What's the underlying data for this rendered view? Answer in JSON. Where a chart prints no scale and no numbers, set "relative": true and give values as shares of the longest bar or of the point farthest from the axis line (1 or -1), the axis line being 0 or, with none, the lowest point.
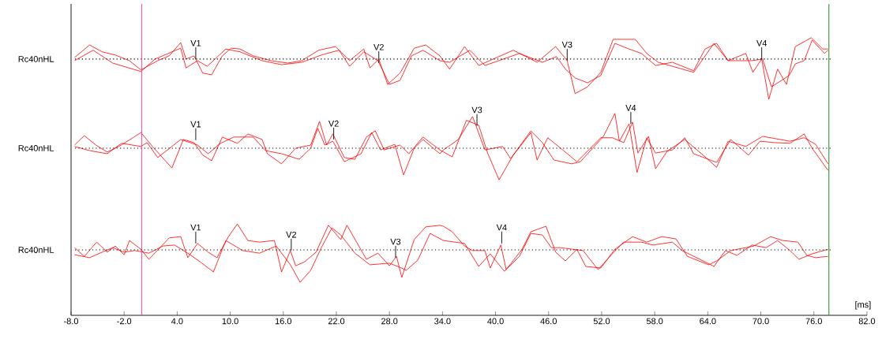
{
  "chart_data": [
    {
      "type": "line",
      "relative": true,
      "ylabel": "Rc40nHL",
      "xlim": [
        -8,
        82
      ],
      "tick_labels": false,
      "series": [
        {
          "color": "#ff0000",
          "x": [
            -7.6,
            -5.9,
            -4.5,
            -3.0,
            -1.4,
            -0.1,
            1.8,
            3.1,
            4.4,
            5.0,
            5.9,
            6.9,
            7.9,
            9.1,
            10.1,
            11.1,
            12.6,
            14.6,
            16.5,
            18.1,
            20.0,
            21.9,
            23.5,
            25.1,
            25.8,
            26.8,
            27.8,
            29.2,
            30.8,
            32.1,
            33.7,
            34.8,
            36.5,
            38.1,
            42.0,
            44.7,
            46.8,
            48.1,
            49.0,
            50.4,
            51.9,
            53.3,
            55.8,
            57.1,
            58.4,
            62.4,
            64.7,
            66.3,
            68.3,
            69.1,
            70.1,
            70.9,
            71.9,
            72.9,
            73.9,
            75.7,
            77.0,
            77.6
          ],
          "values": [
            0.04,
            0.35,
            0.18,
            0.1,
            -0.04,
            -0.27,
            -0.04,
            0.08,
            0.41,
            0,
            0.08,
            -0.35,
            -0.39,
            0.08,
            0.27,
            0.25,
            0.08,
            -0.04,
            -0.1,
            -0.04,
            0.22,
            0.31,
            -0.04,
            0.25,
            -0.22,
            0,
            -0.63,
            -0.35,
            0.27,
            0.35,
            0.08,
            -0.25,
            0.31,
            -0.16,
            0.22,
            -0.08,
            0.31,
            -0.04,
            -0.86,
            -0.69,
            -0.33,
            0.49,
            0.49,
            0.14,
            -0.08,
            -0.33,
            0.39,
            -0.04,
            0.14,
            -0.33,
            0,
            -1.0,
            -0.25,
            -0.63,
            0.31,
            0.53,
            0.25,
            0.25
          ]
        },
        {
          "color": "#ff0000",
          "x": [
            -7.6,
            -5.5,
            -3.3,
            -0.1,
            1.5,
            4.4,
            5.0,
            6.3,
            7.4,
            9.5,
            11.1,
            13.6,
            15.8,
            18.1,
            20.3,
            22.3,
            23.5,
            25.1,
            26.7,
            27.4,
            28.0,
            29.2,
            30.5,
            31.8,
            33.7,
            34.8,
            37.1,
            38.8,
            42.7,
            45.3,
            46.9,
            47.9,
            49.0,
            50.4,
            51.9,
            53.5,
            55.1,
            56.5,
            58.1,
            60.0,
            62.4,
            63.7,
            65.0,
            66.3,
            69.0,
            70.2,
            71.2,
            73.2,
            73.9,
            74.9,
            75.8,
            77.2,
            77.6
          ],
          "values": [
            -0.04,
            0.22,
            -0.1,
            -0.31,
            0,
            0.27,
            -0.22,
            -0.04,
            -0.18,
            0.25,
            0.18,
            -0.04,
            -0.14,
            -0.08,
            0.1,
            0.22,
            -0.18,
            0.18,
            -0.04,
            -0.35,
            -0.63,
            -0.53,
            0.08,
            0.22,
            -0.04,
            -0.08,
            0.22,
            -0.16,
            0.14,
            -0.08,
            0.06,
            -0.25,
            -0.47,
            -0.59,
            -0.41,
            0.39,
            0.25,
            0.14,
            -0.16,
            -0.08,
            -0.29,
            0.25,
            0.39,
            -0.04,
            -0.04,
            0,
            -0.69,
            -0.41,
            -0.12,
            -0.04,
            0.47,
            0.14,
            0.22
          ]
        }
      ],
      "ref_lines": [
        {
          "axis": "y",
          "value": 0,
          "color": "#000000",
          "line_style": "dotted"
        },
        {
          "axis": "x",
          "value": 0,
          "color": "#ff3399",
          "line_style": "solid"
        },
        {
          "axis": "x",
          "value": 77.7,
          "color": "#008000",
          "line_style": "solid"
        }
      ],
      "annotations": [
        {
          "text": "V1",
          "x": 6.1,
          "y": 0
        },
        {
          "text": "V2",
          "x": 26.8,
          "y": -0.1
        },
        {
          "text": "V3",
          "x": 48.1,
          "y": -0.04
        },
        {
          "text": "V4",
          "x": 70.1,
          "y": 0
        }
      ]
    },
    {
      "type": "line",
      "relative": true,
      "ylabel": "Rc40nHL",
      "xlim": [
        -8,
        82
      ],
      "tick_labels": false,
      "series": [
        {
          "color": "#ff0000",
          "x": [
            -7.6,
            -6.5,
            -5.2,
            -3.9,
            -2.6,
            -1.0,
            -0.1,
            1.2,
            3.4,
            4.7,
            5.9,
            6.9,
            7.9,
            9.1,
            10.8,
            12.0,
            13.6,
            14.2,
            15.8,
            17.4,
            19.1,
            20.1,
            20.9,
            21.6,
            22.9,
            24.1,
            25.4,
            26.4,
            27.4,
            29.2,
            30.2,
            31.8,
            33.7,
            35.1,
            36.7,
            38.1,
            39.1,
            40.4,
            42.0,
            44.0,
            45.3,
            46.6,
            48.6,
            49.6,
            52.2,
            53.5,
            54.0,
            55.1,
            56.0,
            57.1,
            58.1,
            60.0,
            61.4,
            62.4,
            65.0,
            66.6,
            68.6,
            69.9,
            71.6,
            73.3,
            74.9,
            75.8,
            77.6
          ],
          "values": [
            0.09,
            0.36,
            0.09,
            -0.11,
            0.05,
            0.3,
            0.45,
            0.05,
            -0.57,
            0.25,
            0.16,
            -0.2,
            -0.36,
            0.32,
            0.14,
            0.41,
            0.25,
            -0.16,
            -0.45,
            0,
            0.09,
            0.77,
            0.09,
            0.41,
            -0.27,
            -0.32,
            0.32,
            0.5,
            -0.05,
            0.09,
            -0.16,
            0.32,
            -0.05,
            -0.25,
            0.8,
            0.66,
            -0.14,
            -0.91,
            -0.2,
            0.5,
            0.16,
            -0.34,
            -0.45,
            -0.39,
            0.34,
            1.0,
            0.2,
            0.7,
            -0.7,
            0.3,
            -0.14,
            -0.05,
            0.3,
            -0.16,
            -0.41,
            0.25,
            -0.2,
            0.2,
            0.16,
            0.14,
            0.41,
            0,
            -0.64
          ]
        },
        {
          "color": "#ff0000",
          "x": [
            -7.6,
            -5.9,
            -3.9,
            -2.3,
            -0.1,
            0.6,
            1.8,
            4.4,
            6.3,
            7.5,
            8.9,
            10.4,
            12.6,
            14.0,
            15.8,
            17.8,
            19.1,
            19.9,
            20.7,
            21.6,
            22.9,
            24.8,
            26.0,
            27.0,
            28.6,
            29.6,
            30.8,
            31.8,
            33.7,
            34.1,
            35.8,
            37.4,
            38.8,
            40.8,
            41.7,
            44.0,
            44.7,
            45.9,
            47.6,
            49.2,
            51.9,
            53.2,
            54.5,
            55.5,
            56.1,
            57.3,
            58.1,
            59.4,
            61.4,
            63.7,
            65.0,
            66.3,
            68.3,
            70.2,
            73.3,
            74.9,
            76.2,
            77.6
          ],
          "values": [
            0.05,
            -0.07,
            -0.16,
            0.14,
            0.05,
            0.16,
            -0.27,
            0.25,
            0.09,
            -0.16,
            0.14,
            0.32,
            0.32,
            -0.07,
            -0.16,
            -0.32,
            0,
            0.57,
            0.09,
            0.2,
            -0.39,
            -0.16,
            0.45,
            -0.05,
            0.11,
            -0.77,
            0,
            0.25,
            -0.16,
            -0.05,
            0.25,
            0.91,
            -0.05,
            0.05,
            -0.3,
            0.45,
            -0.34,
            0.3,
            -0.05,
            -0.39,
            0.3,
            0.3,
            0.16,
            0.75,
            -0.14,
            0.34,
            -0.59,
            -0.09,
            0.25,
            -0.25,
            -0.55,
            0.2,
            0.05,
            0.34,
            0.2,
            0.3,
            0.11,
            -0.45
          ]
        }
      ],
      "ref_lines": [
        {
          "axis": "y",
          "value": 0,
          "color": "#000000",
          "line_style": "dotted"
        },
        {
          "axis": "x",
          "value": 0,
          "color": "#ff3399",
          "line_style": "solid"
        },
        {
          "axis": "x",
          "value": 77.7,
          "color": "#008000",
          "line_style": "solid"
        }
      ],
      "annotations": [
        {
          "text": "V1",
          "x": 6.1,
          "y": 0.23
        },
        {
          "text": "V2",
          "x": 21.7,
          "y": 0.25
        },
        {
          "text": "V3",
          "x": 37.9,
          "y": 0.64
        },
        {
          "text": "V4",
          "x": 55.3,
          "y": 0.7
        }
      ]
    },
    {
      "type": "line",
      "relative": true,
      "ylabel": "Rc40nHL",
      "xlabel": "[ms]",
      "xlim": [
        -8,
        82
      ],
      "tick_labels": "x",
      "xticks": [
        {
          "value": -8,
          "label": "-8.0"
        },
        {
          "value": -2,
          "label": "-2.0"
        },
        {
          "value": 4,
          "label": "4.0"
        },
        {
          "value": 10,
          "label": "10.0"
        },
        {
          "value": 16,
          "label": "16.0"
        },
        {
          "value": 22,
          "label": "22.0"
        },
        {
          "value": 28,
          "label": "28.0"
        },
        {
          "value": 34,
          "label": "34.0"
        },
        {
          "value": 40,
          "label": "40.0"
        },
        {
          "value": 46,
          "label": "46.0"
        },
        {
          "value": 52,
          "label": "52.0"
        },
        {
          "value": 58,
          "label": "58.0"
        },
        {
          "value": 64,
          "label": "64.0"
        },
        {
          "value": 70,
          "label": "70.0"
        },
        {
          "value": 76,
          "label": "76.0"
        },
        {
          "value": 82,
          "label": "82.0"
        }
      ],
      "series": [
        {
          "color": "#ff0000",
          "x": [
            -7.6,
            -6.5,
            -5.1,
            -3.9,
            -3.0,
            -2.0,
            -1.4,
            -0.1,
            0.8,
            3.1,
            4.4,
            5.2,
            6.3,
            7.5,
            8.5,
            9.8,
            10.8,
            12.0,
            13.3,
            15.0,
            15.8,
            16.8,
            17.4,
            18.4,
            19.7,
            21.1,
            22.5,
            23.2,
            25.4,
            26.7,
            28.0,
            28.8,
            29.4,
            30.8,
            32.1,
            33.7,
            34.1,
            35.1,
            36.5,
            37.4,
            38.8,
            39.4,
            40.6,
            41.2,
            43.0,
            44.0,
            45.7,
            46.8,
            47.9,
            49.2,
            50.2,
            51.9,
            53.5,
            55.5,
            57.1,
            58.8,
            60.4,
            61.7,
            64.1,
            65.0,
            66.6,
            68.3,
            69.2,
            71.1,
            72.5,
            74.2,
            75.2,
            76.2,
            77.6
          ],
          "values": [
            0.07,
            -0.2,
            0.24,
            -0.07,
            0.12,
            -0.15,
            0.29,
            0.02,
            -0.29,
            0.37,
            0.41,
            -0.24,
            0.2,
            -0.07,
            -0.24,
            0.41,
            0.8,
            0.29,
            0.24,
            0.29,
            -0.68,
            -0.02,
            -0.49,
            -0.37,
            -0.07,
            0.76,
            0.32,
            0.76,
            -0.29,
            -0.1,
            -0.49,
            -0.2,
            -0.85,
            0.32,
            0.71,
            0.76,
            0.73,
            0.56,
            0.12,
            -0.02,
            -0.02,
            -0.56,
            0.15,
            -0.61,
            0.02,
            0.56,
            0.73,
            -0.07,
            -0.34,
            0.02,
            -0.51,
            -0.56,
            0.02,
            0.41,
            0.24,
            0.41,
            0.34,
            -0.2,
            -0.46,
            -0.34,
            -0.02,
            0.07,
            0.12,
            0.41,
            0.29,
            0.24,
            -0.17,
            -0.24,
            -0.2
          ]
        },
        {
          "color": "#ff0000",
          "x": [
            -7.6,
            -5.9,
            -3.3,
            -2.0,
            -0.8,
            0.8,
            2.4,
            3.7,
            5.2,
            6.6,
            8.1,
            9.5,
            11.4,
            13.3,
            15.2,
            16.8,
            17.9,
            19.1,
            20.3,
            21.5,
            22.5,
            24.1,
            25.8,
            28.0,
            29.2,
            29.9,
            31.2,
            32.6,
            34.1,
            36.5,
            38.1,
            39.4,
            41.0,
            42.7,
            44.0,
            45.3,
            46.3,
            47.3,
            49.9,
            51.6,
            53.2,
            54.5,
            56.5,
            57.8,
            60.0,
            61.1,
            63.1,
            64.7,
            66.0,
            67.3,
            69.0,
            70.6,
            71.9,
            73.3,
            74.3,
            75.8,
            77.6
          ],
          "values": [
            -0.15,
            -0.24,
            0.07,
            -0.07,
            -0.02,
            -0.1,
            0.12,
            0.15,
            -0.1,
            -0.37,
            -0.68,
            0.29,
            -0.02,
            -0.1,
            0.12,
            -0.46,
            -1.0,
            -0.63,
            0.07,
            0.68,
            0.46,
            -0.1,
            -0.46,
            -0.41,
            -0.54,
            -0.63,
            -0.32,
            0.51,
            0.29,
            0.2,
            -0.51,
            -0.12,
            -0.66,
            -0.2,
            0.51,
            0.46,
            0.07,
            0.07,
            -0.02,
            -0.61,
            -0.12,
            0.24,
            0.24,
            0.15,
            0.24,
            -0.02,
            -0.29,
            -0.51,
            -0.02,
            -0.17,
            0.15,
            0.07,
            0.29,
            -0.02,
            -0.29,
            -0.12,
            0.02
          ]
        }
      ],
      "ref_lines": [
        {
          "axis": "y",
          "value": 0,
          "color": "#000000",
          "line_style": "dotted"
        },
        {
          "axis": "x",
          "value": 0,
          "color": "#ff3399",
          "line_style": "solid"
        },
        {
          "axis": "x",
          "value": 77.7,
          "color": "#008000",
          "line_style": "solid"
        }
      ],
      "annotations": [
        {
          "text": "V1",
          "x": 6.1,
          "y": 0.2
        },
        {
          "text": "V2",
          "x": 16.9,
          "y": -0.02
        },
        {
          "text": "V3",
          "x": 28.7,
          "y": -0.24
        },
        {
          "text": "V4",
          "x": 40.7,
          "y": 0.2
        }
      ]
    }
  ]
}
